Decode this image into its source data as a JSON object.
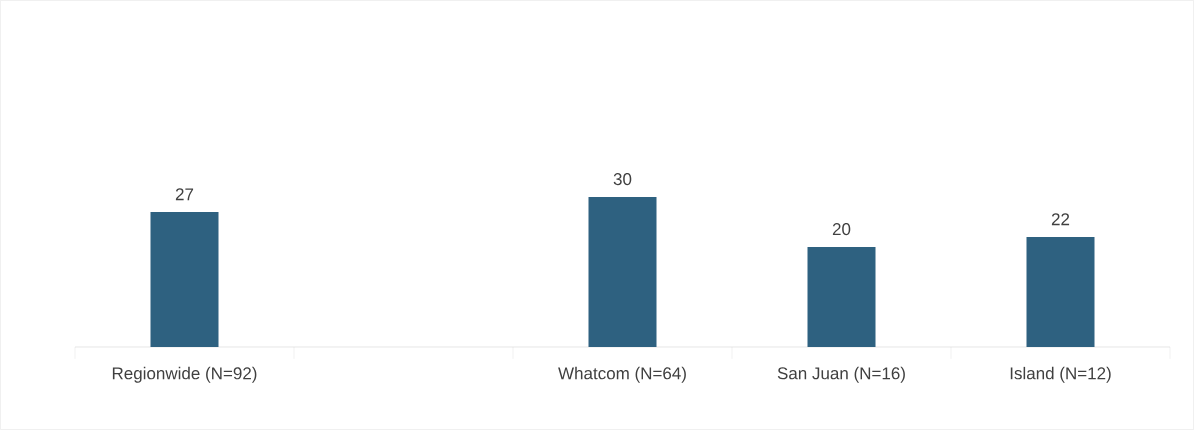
{
  "chart_data": {
    "type": "bar",
    "categories": [
      "Regionwide (N=92)",
      null,
      "Whatcom (N=64)",
      "San Juan (N=16)",
      "Island (N=12)"
    ],
    "values": [
      27,
      null,
      30,
      20,
      22
    ],
    "color": "#2e6180",
    "data_labels": true
  }
}
